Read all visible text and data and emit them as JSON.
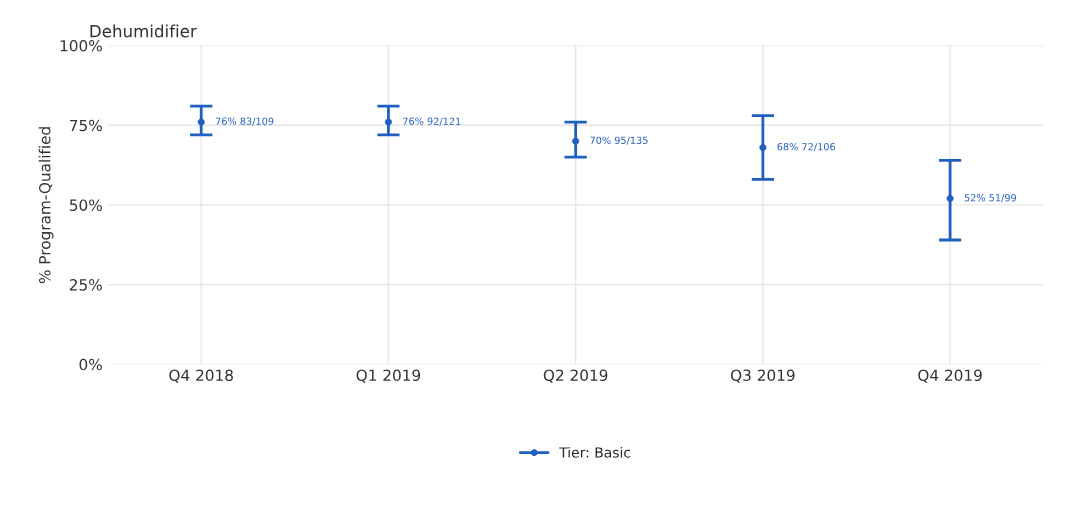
{
  "chart_data": {
    "type": "scatter",
    "title": "Dehumidifier",
    "ylabel": "% Program-Qualified",
    "categories": [
      "Q4 2018",
      "Q1 2019",
      "Q2 2019",
      "Q3 2019",
      "Q4 2019"
    ],
    "series": [
      {
        "name": "Tier: Basic",
        "color": "#1f5fbf",
        "values": [
          76,
          76,
          70,
          68,
          52
        ],
        "errors": [
          [
            72,
            81
          ],
          [
            72,
            81
          ],
          [
            65,
            76
          ],
          [
            58,
            78
          ],
          [
            39,
            64
          ]
        ],
        "value_labels": [
          "76% 83/109",
          "76% 92/121",
          "70% 95/135",
          "68% 72/106",
          "52% 51/99"
        ]
      }
    ],
    "ylim": [
      0,
      100
    ],
    "yticks": [
      {
        "value": 0,
        "label": "0%"
      },
      {
        "value": 25,
        "label": "25%"
      },
      {
        "value": 50,
        "label": "50%"
      },
      {
        "value": 75,
        "label": "75%"
      },
      {
        "value": 100,
        "label": "100%"
      }
    ],
    "grid": true,
    "legend": "bottom",
    "marker": "circle"
  }
}
